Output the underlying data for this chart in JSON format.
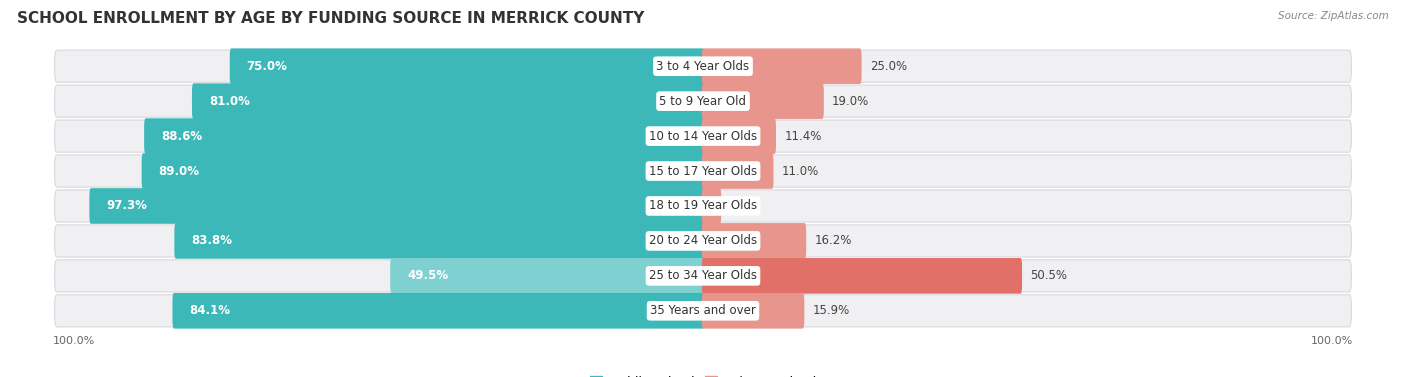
{
  "title": "SCHOOL ENROLLMENT BY AGE BY FUNDING SOURCE IN MERRICK COUNTY",
  "source": "Source: ZipAtlas.com",
  "categories": [
    "3 to 4 Year Olds",
    "5 to 9 Year Old",
    "10 to 14 Year Olds",
    "15 to 17 Year Olds",
    "18 to 19 Year Olds",
    "20 to 24 Year Olds",
    "25 to 34 Year Olds",
    "35 Years and over"
  ],
  "public_values": [
    75.0,
    81.0,
    88.6,
    89.0,
    97.3,
    83.8,
    49.5,
    84.1
  ],
  "private_values": [
    25.0,
    19.0,
    11.4,
    11.0,
    2.7,
    16.2,
    50.5,
    15.9
  ],
  "public_colors": [
    "#3db8b8",
    "#3db8b8",
    "#3db8b8",
    "#3db8b8",
    "#3db8b8",
    "#3db8b8",
    "#7fd0d0",
    "#3db8b8"
  ],
  "private_colors": [
    "#e8958d",
    "#e8958d",
    "#e8958d",
    "#e8958d",
    "#e8958d",
    "#e8958d",
    "#e07068",
    "#e8958d"
  ],
  "row_bg_color": "#f0f0f2",
  "row_border_color": "#d8d8de",
  "background_color": "#ffffff",
  "title_fontsize": 11,
  "label_fontsize": 8.5,
  "legend_fontsize": 9,
  "axis_label_fontsize": 8
}
